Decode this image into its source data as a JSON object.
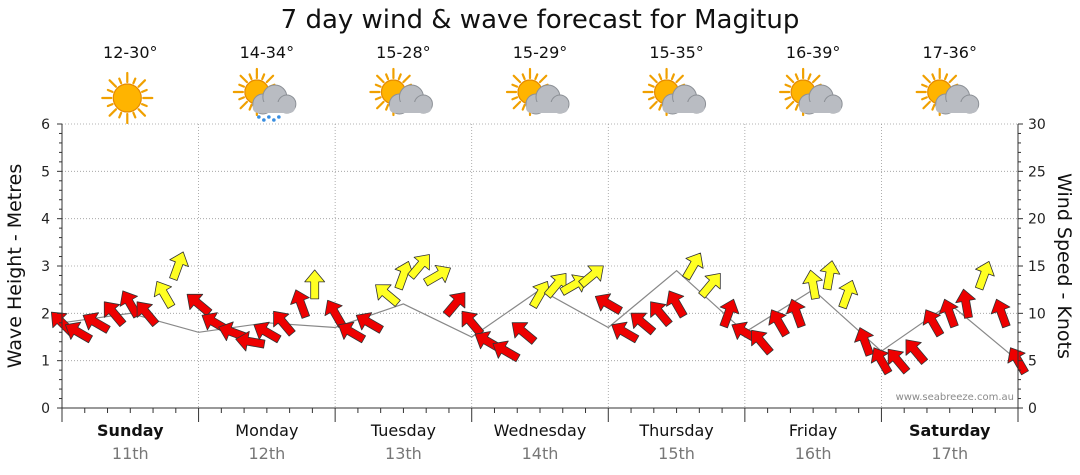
{
  "chart_data": {
    "type": "line",
    "title": "7 day wind & wave forecast for Magitup",
    "ylabel_left": "Wave Height - Metres",
    "ylabel_right": "Wind Speed - Knots",
    "ylim_left": [
      0,
      6
    ],
    "ylim_right": [
      0,
      30
    ],
    "yticks_left": [
      "0",
      "1",
      "2",
      "3",
      "4",
      "5",
      "6"
    ],
    "yticks_right": [
      "0",
      "5",
      "10",
      "15",
      "20",
      "25",
      "30"
    ],
    "credit": "www.seabreeze.com.au",
    "days": [
      {
        "name": "Sunday",
        "date": "11th",
        "temp": "12-30°",
        "icon": "sun-icon",
        "bold": true
      },
      {
        "name": "Monday",
        "date": "12th",
        "temp": "14-34°",
        "icon": "sun-cloud-rain-icon",
        "bold": false
      },
      {
        "name": "Tuesday",
        "date": "13th",
        "temp": "15-28°",
        "icon": "sun-cloud-icon",
        "bold": false
      },
      {
        "name": "Wednesday",
        "date": "14th",
        "temp": "15-29°",
        "icon": "sun-cloud-icon",
        "bold": false
      },
      {
        "name": "Thursday",
        "date": "15th",
        "temp": "15-35°",
        "icon": "sun-cloud-icon",
        "bold": false
      },
      {
        "name": "Friday",
        "date": "16th",
        "temp": "16-39°",
        "icon": "sun-cloud-icon",
        "bold": false
      },
      {
        "name": "Saturday",
        "date": "17th",
        "temp": "17-36°",
        "icon": "sun-cloud-icon",
        "bold": true
      }
    ],
    "series": [
      {
        "name": "Wind Speed - Knots",
        "color_low": "#ee0000",
        "color_high": "#ffff22",
        "colour_threshold_knots": 12,
        "x_days": [
          0.0,
          0.12,
          0.25,
          0.38,
          0.5,
          0.62,
          0.75,
          0.85,
          1.0,
          1.12,
          1.25,
          1.38,
          1.5,
          1.62,
          1.75,
          1.85,
          2.0,
          2.12,
          2.25,
          2.38,
          2.5,
          2.62,
          2.75,
          2.88,
          3.0,
          3.12,
          3.25,
          3.38,
          3.5,
          3.62,
          3.75,
          3.88,
          4.0,
          4.12,
          4.25,
          4.38,
          4.5,
          4.62,
          4.75,
          4.88,
          5.0,
          5.12,
          5.25,
          5.38,
          5.5,
          5.62,
          5.75,
          5.88,
          6.0,
          6.12,
          6.25,
          6.38,
          6.5,
          6.62,
          6.75,
          6.88,
          7.0
        ],
        "values": [
          9,
          8,
          9,
          10,
          11,
          10,
          12,
          15,
          11,
          9,
          8,
          7,
          8,
          9,
          11,
          13,
          10,
          8,
          9,
          12,
          14,
          15,
          14,
          11,
          9,
          7,
          6,
          8,
          12,
          13,
          13,
          14,
          11,
          8,
          9,
          10,
          11,
          15,
          13,
          10,
          8,
          7,
          9,
          10,
          13,
          14,
          12,
          7,
          5,
          5,
          6,
          9,
          10,
          11,
          14,
          10,
          5
        ],
        "direction_deg": [
          315,
          300,
          300,
          320,
          330,
          320,
          330,
          20,
          310,
          300,
          290,
          280,
          300,
          320,
          340,
          0,
          330,
          300,
          300,
          310,
          20,
          40,
          60,
          40,
          320,
          300,
          300,
          310,
          30,
          40,
          60,
          50,
          300,
          300,
          310,
          320,
          330,
          30,
          40,
          20,
          300,
          320,
          330,
          340,
          350,
          10,
          20,
          340,
          330,
          320,
          320,
          330,
          340,
          350,
          20,
          340,
          330
        ]
      },
      {
        "name": "Wave Height - Metres",
        "color": "#888888",
        "x_days": [
          0.0,
          0.5,
          1.0,
          1.5,
          2.0,
          2.5,
          3.0,
          3.5,
          4.0,
          4.5,
          5.0,
          5.5,
          6.0,
          6.5,
          7.0
        ],
        "values": [
          1.8,
          2.0,
          1.6,
          1.8,
          1.7,
          2.2,
          1.5,
          2.5,
          1.7,
          2.9,
          1.6,
          2.5,
          1.2,
          2.2,
          1.0
        ]
      }
    ]
  }
}
